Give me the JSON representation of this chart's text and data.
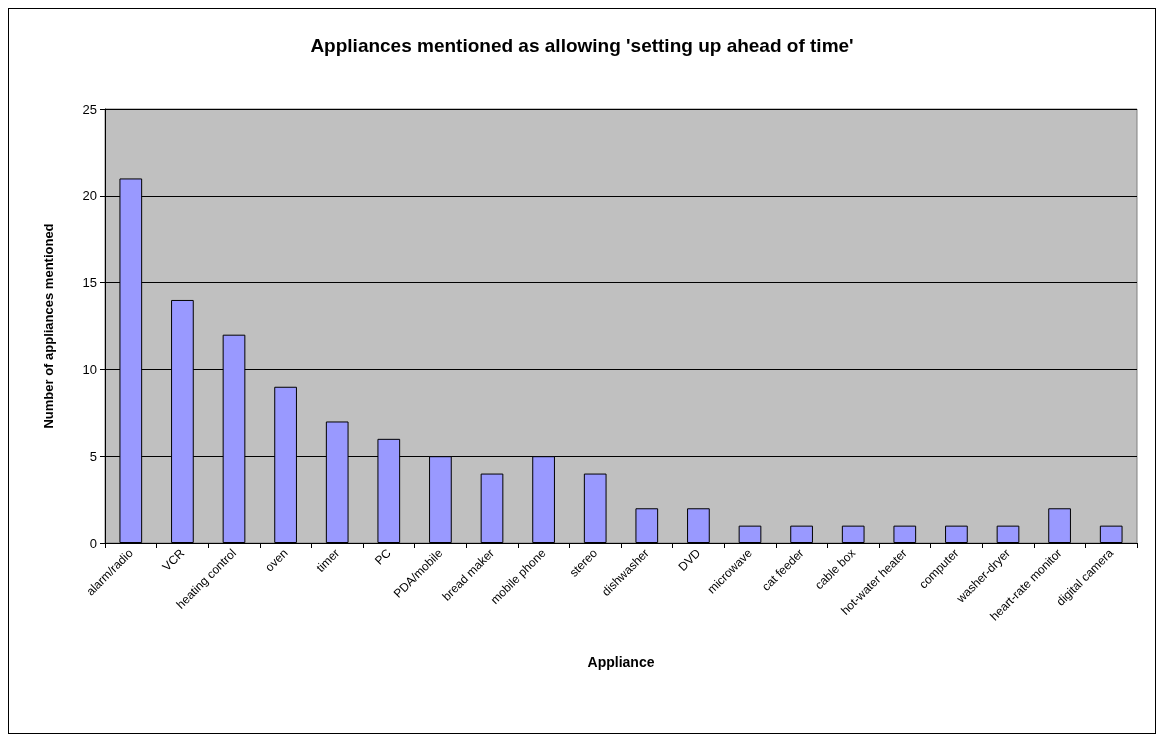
{
  "chart_data": {
    "type": "bar",
    "title": "Appliances mentioned as allowing 'setting up ahead of time'",
    "xlabel": "Appliance",
    "ylabel": "Number of appliances mentioned",
    "categories": [
      "alarm/radio",
      "VCR",
      "heating control",
      "oven",
      "timer",
      "PC",
      "PDA/mobile",
      "bread maker",
      "mobile phone",
      "stereo",
      "dishwasher",
      "DVD",
      "microwave",
      "cat feeder",
      "cable box",
      "hot-water heater",
      "computer",
      "washer-dryer",
      "heart-rate monitor",
      "digital camera"
    ],
    "values": [
      21,
      14,
      12,
      9,
      7,
      6,
      5,
      4,
      5,
      4,
      2,
      2,
      1,
      1,
      1,
      1,
      1,
      1,
      2,
      1
    ],
    "color": "#9999ff",
    "ylim": [
      0,
      25
    ],
    "yticks": [
      0,
      5,
      10,
      15,
      20,
      25
    ],
    "grid": "y"
  }
}
